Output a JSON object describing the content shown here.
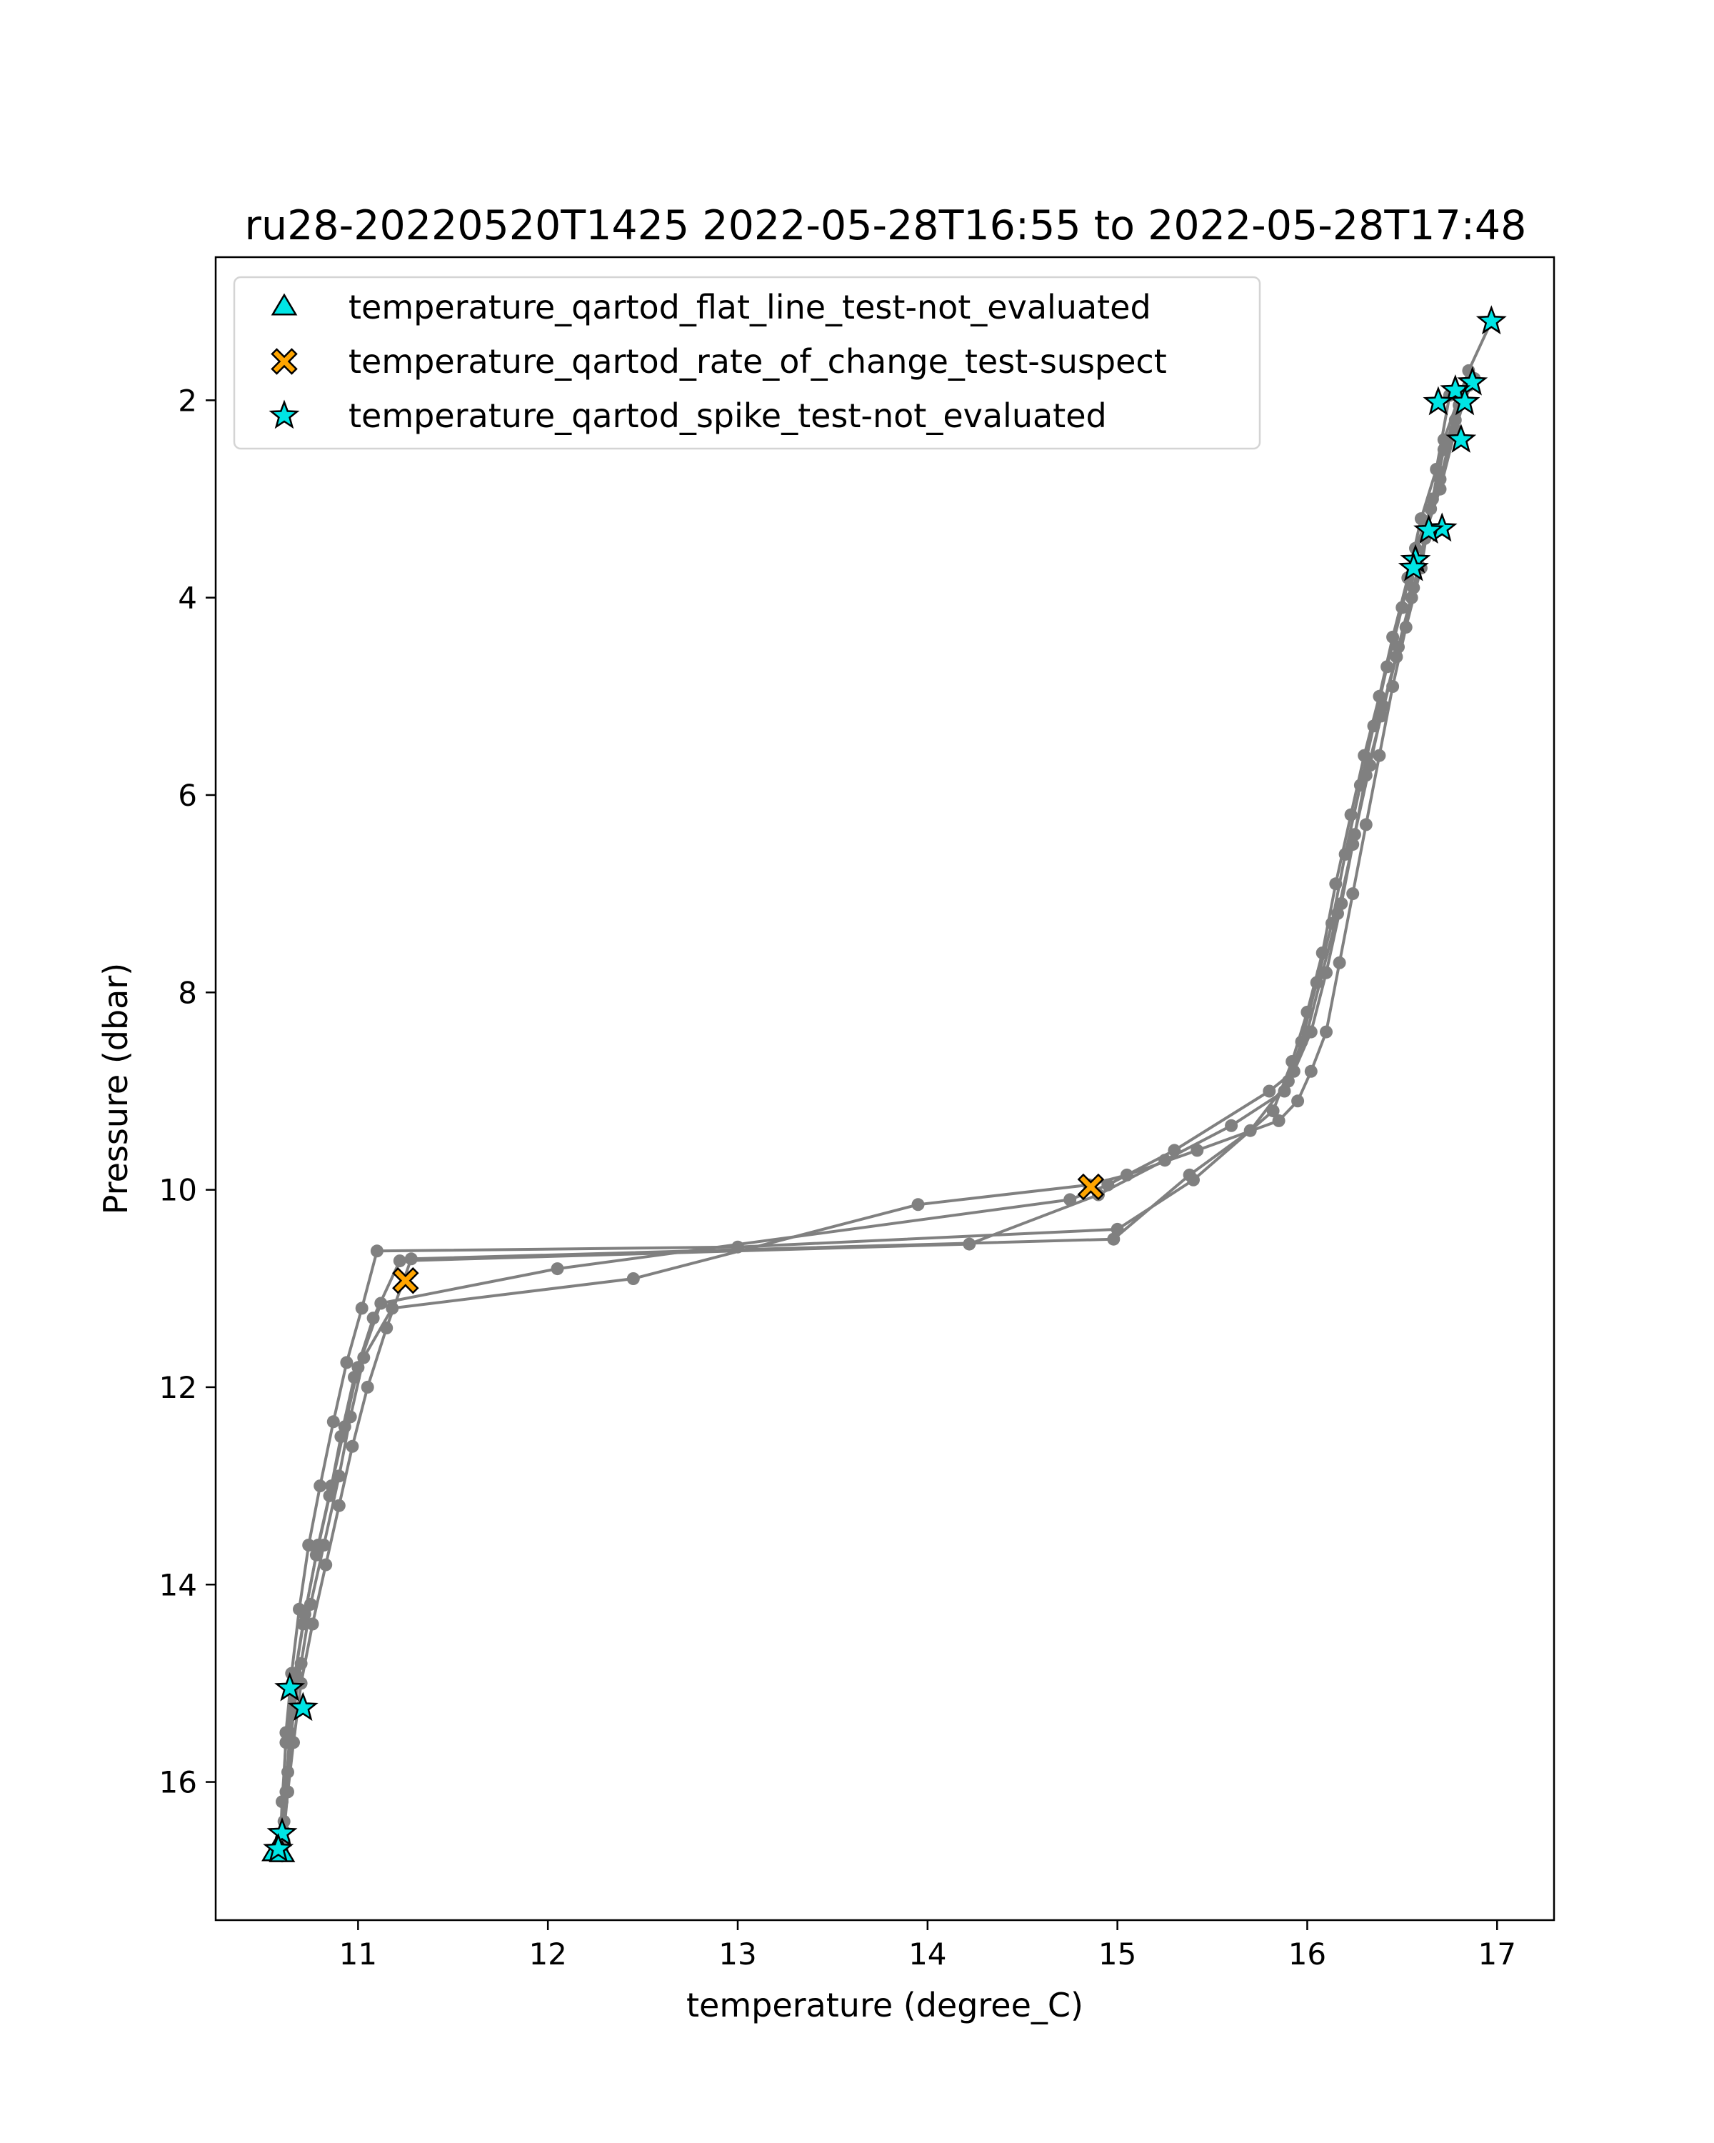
{
  "chart_data": {
    "type": "scatter",
    "title": "ru28-20220520T1425 2022-05-28T16:55 to 2022-05-28T17:48",
    "xlabel": "temperature (degree_C)",
    "ylabel": "Pressure (dbar)",
    "xlim": [
      10.25,
      17.3
    ],
    "ylim": [
      17.4,
      0.55
    ],
    "y_inverted": true,
    "xticks": [
      "11",
      "12",
      "13",
      "14",
      "15",
      "16",
      "17"
    ],
    "yticks": [
      "2",
      "4",
      "6",
      "8",
      "10",
      "12",
      "14",
      "16"
    ],
    "grid": false,
    "legend_position": "top-left",
    "profile_color": "#808080",
    "profiles": [
      {
        "x": [
          16.97,
          16.85,
          16.72,
          16.66,
          16.6,
          16.52,
          16.45,
          16.38,
          16.31,
          16.24,
          16.17,
          16.1,
          16.02,
          15.95,
          15.85,
          15.42,
          15.05,
          14.85,
          13.95,
          12.45,
          11.18,
          11.03,
          10.96,
          10.9,
          10.82,
          10.75,
          10.7,
          10.66,
          10.63,
          10.61,
          10.6
        ],
        "y": [
          1.2,
          1.7,
          2.4,
          3.0,
          3.7,
          4.3,
          4.9,
          5.6,
          6.3,
          7.0,
          7.7,
          8.4,
          8.8,
          9.1,
          9.3,
          9.6,
          9.85,
          9.95,
          10.15,
          10.9,
          11.2,
          11.7,
          12.3,
          12.9,
          13.6,
          14.2,
          14.8,
          15.3,
          15.9,
          16.4,
          16.75
        ]
      },
      {
        "x": [
          16.85,
          16.78,
          16.7,
          16.63,
          16.56,
          16.48,
          16.4,
          16.33,
          16.25,
          16.18,
          16.1,
          16.02,
          15.93,
          15.8,
          15.3,
          14.95,
          14.75,
          12.05,
          11.12,
          11.0,
          10.93,
          10.86,
          10.79,
          10.72,
          10.67,
          10.64,
          10.62,
          10.61
        ],
        "y": [
          1.85,
          2.3,
          2.9,
          3.3,
          3.9,
          4.5,
          5.1,
          5.7,
          6.4,
          7.1,
          7.8,
          8.4,
          8.8,
          9.0,
          9.6,
          9.95,
          10.1,
          10.8,
          11.15,
          11.8,
          12.4,
          13.0,
          13.6,
          14.3,
          14.9,
          15.5,
          16.1,
          16.6
        ]
      },
      {
        "x": [
          16.8,
          16.72,
          16.65,
          16.57,
          16.5,
          16.42,
          16.35,
          16.28,
          16.2,
          16.13,
          16.05,
          15.97,
          15.88,
          15.6,
          15.25,
          14.9,
          14.22,
          11.22,
          11.08,
          10.98,
          10.91,
          10.85,
          10.78,
          10.71,
          10.66,
          10.62,
          10.6,
          10.59
        ],
        "y": [
          2.05,
          2.5,
          3.1,
          3.5,
          4.1,
          4.7,
          5.3,
          5.9,
          6.6,
          7.3,
          7.9,
          8.5,
          9.0,
          9.35,
          9.7,
          10.05,
          10.55,
          10.72,
          11.3,
          11.9,
          12.5,
          13.1,
          13.7,
          14.4,
          15.0,
          15.6,
          16.2,
          16.65
        ]
      },
      {
        "x": [
          16.75,
          16.68,
          16.6,
          16.53,
          16.45,
          16.38,
          16.3,
          16.23,
          16.15,
          16.08,
          16.0,
          15.92,
          15.82,
          15.4,
          15.0,
          13.0,
          11.1,
          11.02,
          10.94,
          10.87,
          10.8,
          10.74,
          10.69,
          10.65,
          10.62,
          10.6
        ],
        "y": [
          1.95,
          2.7,
          3.2,
          3.8,
          4.4,
          5.0,
          5.6,
          6.2,
          6.9,
          7.6,
          8.2,
          8.7,
          9.2,
          9.9,
          10.4,
          10.58,
          10.62,
          11.2,
          11.75,
          12.35,
          13.0,
          13.6,
          14.25,
          14.9,
          15.5,
          16.55
        ]
      },
      {
        "x": [
          16.88,
          16.78,
          16.7,
          16.62,
          16.55,
          16.47,
          16.39,
          16.31,
          16.24,
          16.16,
          16.08,
          16.0,
          15.9,
          15.7,
          15.38,
          14.98,
          11.28,
          11.15,
          11.05,
          10.97,
          10.9,
          10.83,
          10.76,
          10.7,
          10.66,
          10.63,
          10.61,
          10.6
        ],
        "y": [
          1.78,
          2.2,
          2.8,
          3.4,
          4.0,
          4.6,
          5.2,
          5.8,
          6.5,
          7.2,
          7.8,
          8.4,
          8.9,
          9.4,
          9.85,
          10.5,
          10.7,
          11.4,
          12.0,
          12.6,
          13.2,
          13.8,
          14.4,
          15.0,
          15.6,
          16.1,
          16.5,
          16.7
        ]
      }
    ],
    "series": [
      {
        "name": "temperature_qartod_flat_line_test-not_evaluated",
        "marker": "triangle",
        "color": "#00e5e5",
        "x": [
          10.56,
          10.6
        ],
        "y": [
          16.72,
          16.73
        ]
      },
      {
        "name": "temperature_qartod_rate_of_change_test-suspect",
        "marker": "x-filled",
        "color": "#ffa500",
        "x": [
          11.25,
          14.86
        ],
        "y": [
          10.92,
          9.97
        ]
      },
      {
        "name": "temperature_qartod_spike_test-not_evaluated",
        "marker": "star",
        "color": "#00e5e5",
        "x": [
          16.97,
          16.87,
          16.78,
          16.83,
          16.69,
          16.81,
          16.71,
          16.64,
          16.57,
          16.56,
          10.64,
          10.71,
          10.6,
          10.58
        ],
        "y": [
          1.2,
          1.82,
          1.9,
          2.02,
          2.02,
          2.4,
          3.3,
          3.32,
          3.62,
          3.7,
          15.05,
          15.25,
          16.52,
          16.68
        ]
      }
    ]
  }
}
